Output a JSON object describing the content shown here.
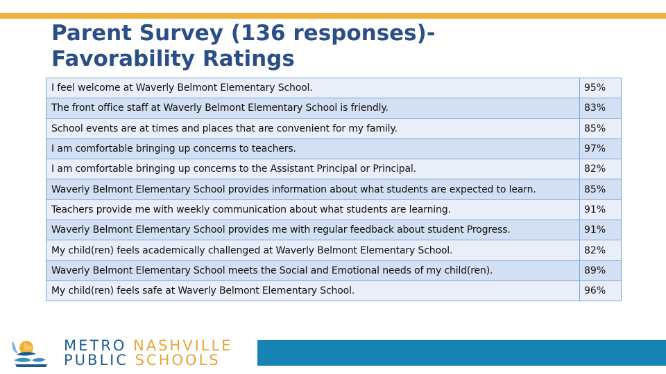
{
  "slide": {
    "title_line1": "Parent Survey (136 responses)-",
    "title_line2": "Favorability Ratings"
  },
  "table": {
    "rows": [
      {
        "statement": "I feel welcome at Waverly Belmont Elementary School.",
        "percent": "95%"
      },
      {
        "statement": "The front office staff at Waverly Belmont Elementary School is friendly.",
        "percent": "83%"
      },
      {
        "statement": "School events are at times and places that are convenient for my family.",
        "percent": "85%"
      },
      {
        "statement": "I am comfortable bringing up concerns to teachers.",
        "percent": "97%"
      },
      {
        "statement": "I am comfortable bringing up concerns to the Assistant Principal or Principal.",
        "percent": "82%"
      },
      {
        "statement": "Waverly Belmont Elementary School provides information about what students are expected to learn.",
        "percent": "85%"
      },
      {
        "statement": "Teachers provide me with weekly communication about what students are learning.",
        "percent": "91%"
      },
      {
        "statement": "Waverly Belmont Elementary School provides me with regular feedback about student Progress.",
        "percent": "91%"
      },
      {
        "statement": "My child(ren) feels academically challenged at Waverly Belmont Elementary School.",
        "percent": "82%"
      },
      {
        "statement": "Waverly Belmont Elementary School meets the Social and Emotional needs of my child(ren).",
        "percent": "89%"
      },
      {
        "statement": "My child(ren) feels safe at Waverly Belmont Elementary School.",
        "percent": "96%"
      }
    ]
  },
  "logo": {
    "word1": "METRO",
    "word2": "NASHVILLE",
    "word3": "PUBLIC",
    "word4": "SCHOOLS"
  },
  "colors": {
    "accent_gold": "#eeb13a",
    "title_navy": "#2a4f86",
    "table_border": "#78a6d6",
    "row_light": "#e9eef8",
    "row_dark": "#d3dff2",
    "footer_blue": "#1783b5"
  },
  "icons": {
    "logo_mark": "school-logo-icon"
  }
}
